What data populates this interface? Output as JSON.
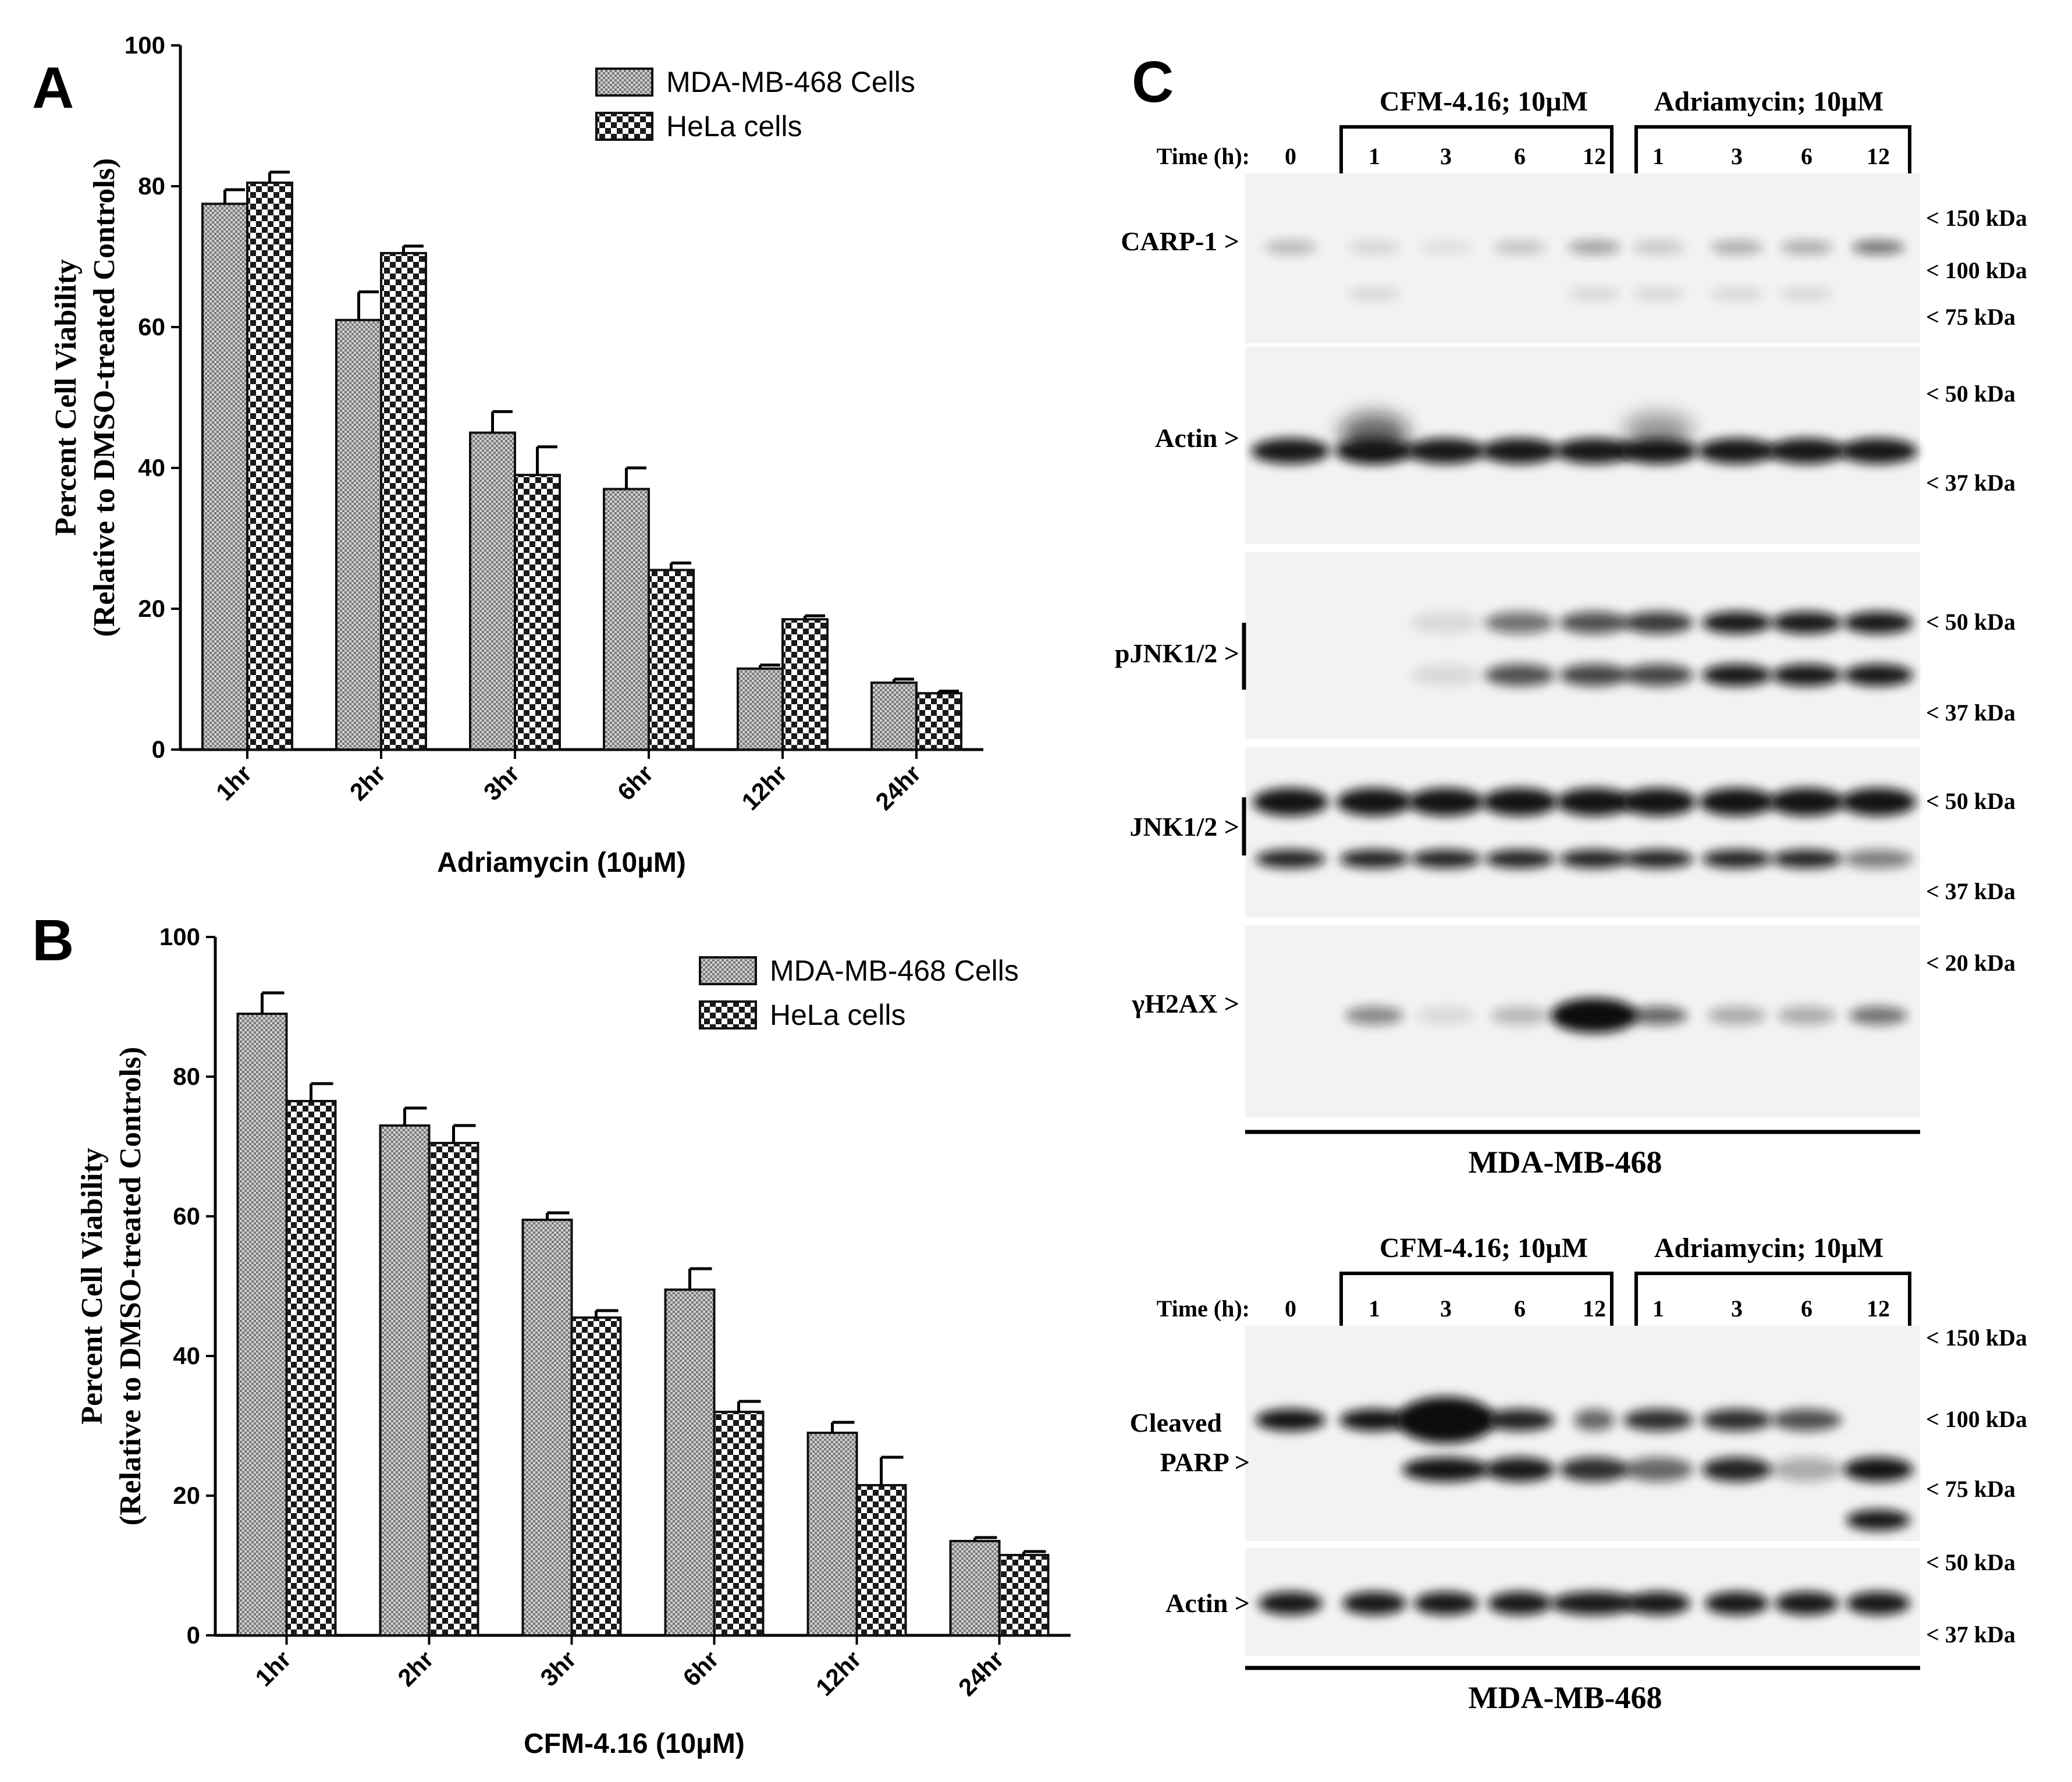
{
  "panels": {
    "A": "A",
    "B": "B",
    "C": "C"
  },
  "chart_data": [
    {
      "panel": "A",
      "type": "bar",
      "categories": [
        "1hr",
        "2hr",
        "3hr",
        "6hr",
        "12hr",
        "24hr"
      ],
      "series": [
        {
          "name": "MDA-MB-468 Cells",
          "values": [
            77.5,
            61,
            45,
            37,
            11.5,
            9.5
          ],
          "errors": [
            2,
            4,
            3,
            3,
            0.5,
            0.5
          ]
        },
        {
          "name": "HeLa cells",
          "values": [
            80.5,
            70.5,
            39,
            25.5,
            18.5,
            8
          ],
          "errors": [
            1.5,
            1,
            4,
            1,
            0.5,
            0.3
          ]
        }
      ],
      "title": "",
      "ylabel_line1": "Percent Cell Viability",
      "ylabel_line2": "(Relative to DMSO-treated Controls)",
      "xlabel": "Adriamycin (10µM)",
      "ylim": [
        0,
        100
      ],
      "yticks": [
        0,
        20,
        40,
        60,
        80,
        100
      ],
      "legend_position": "top-right",
      "grid": false
    },
    {
      "panel": "B",
      "type": "bar",
      "categories": [
        "1hr",
        "2hr",
        "3hr",
        "6hr",
        "12hr",
        "24hr"
      ],
      "series": [
        {
          "name": "MDA-MB-468 Cells",
          "values": [
            89,
            73,
            59.5,
            49.5,
            29,
            13.5
          ],
          "errors": [
            3,
            2.5,
            1,
            3,
            1.5,
            0.5
          ]
        },
        {
          "name": "HeLa cells",
          "values": [
            76.5,
            70.5,
            45.5,
            32,
            21.5,
            11.5
          ],
          "errors": [
            2.5,
            2.5,
            1,
            1.5,
            4,
            0.5
          ]
        }
      ],
      "title": "",
      "ylabel_line1": "Percent Cell Viability",
      "ylabel_line2": "(Relative to DMSO-treated Controls)",
      "xlabel": "CFM-4.16 (10µM)",
      "ylim": [
        0,
        100
      ],
      "yticks": [
        0,
        20,
        40,
        60,
        80,
        100
      ],
      "legend_position": "top-right",
      "grid": false
    }
  ],
  "blot_top": {
    "group1": "CFM-4.16; 10µM",
    "group2": "Adriamycin; 10µM",
    "time_label": "Time (h):",
    "lanes": [
      "0",
      "1",
      "3",
      "6",
      "12",
      "1",
      "3",
      "6",
      "12"
    ],
    "rows": [
      {
        "label": "CARP-1 >",
        "markers": [
          "< 150 kDa",
          "< 100 kDa",
          "< 75 kDa"
        ]
      },
      {
        "label": "Actin >",
        "markers": [
          "< 50 kDa",
          "< 37 kDa"
        ]
      },
      {
        "label": "pJNK1/2 >",
        "markers": [
          "< 50 kDa",
          "< 37 kDa"
        ]
      },
      {
        "label": "JNK1/2 >",
        "markers": [
          "< 50 kDa",
          "< 37 kDa"
        ]
      },
      {
        "label": "γH2AX >",
        "markers": [
          "< 20 kDa"
        ]
      }
    ],
    "cell_line": "MDA-MB-468"
  },
  "blot_bottom": {
    "group1": "CFM-4.16; 10µM",
    "group2": "Adriamycin; 10µM",
    "time_label": "Time (h):",
    "lanes": [
      "0",
      "1",
      "3",
      "6",
      "12",
      "1",
      "3",
      "6",
      "12"
    ],
    "rows": [
      {
        "label_line1": "Cleaved",
        "label_line2": "PARP >",
        "markers": [
          "< 150 kDa",
          "< 100 kDa",
          "< 75 kDa"
        ]
      },
      {
        "label": "Actin >",
        "markers": [
          "< 50 kDa",
          "< 37 kDa"
        ]
      }
    ],
    "cell_line": "MDA-MB-468"
  },
  "colors": {
    "bar_stroke": "#111111",
    "blot_bg": "#f2f2f2",
    "band": "#0a0a0a"
  }
}
